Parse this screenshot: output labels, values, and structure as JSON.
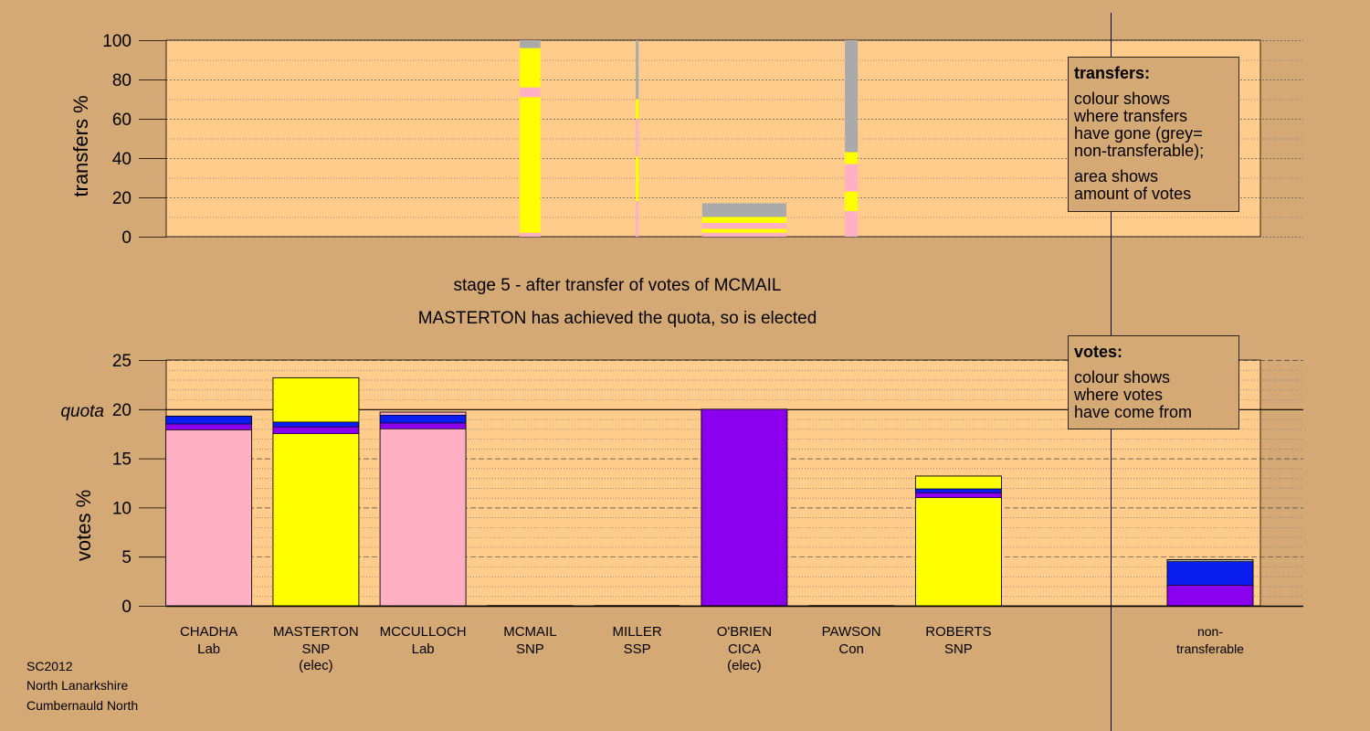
{
  "colors": {
    "background": "#D4A976",
    "plot": "#FFCC8C",
    "Lab": "#FFB0C3",
    "SNP": "#FFFF00",
    "CICA": "#8C00F0",
    "other": "#0A1EF0",
    "non_transferable": "#AAAAAA"
  },
  "stage_title": "stage 5 - after transfer of votes of MCMAIL",
  "stage_subtitle": "MASTERTON has achieved the quota, so is elected",
  "footer": {
    "line1": "SC2012",
    "line2": "North Lanarkshire",
    "line3": "Cumbernauld North"
  },
  "transfers_legend": {
    "title": "transfers:",
    "line1": "colour shows",
    "line2": "where transfers",
    "line3": "have gone (grey=",
    "line4": "non-transferable);",
    "line5": "area shows",
    "line6": "amount of votes"
  },
  "votes_legend": {
    "title": "votes:",
    "line1": "colour shows",
    "line2": "where votes",
    "line3": "have come from"
  },
  "chart_data": [
    {
      "type": "bar",
      "ylabel": "transfers %",
      "ylim": [
        0,
        100
      ],
      "yticks": [
        "0",
        "20",
        "40",
        "60",
        "80",
        "100"
      ],
      "transfer_columns": [
        {
          "slot": 3.5,
          "width": 0.24,
          "segments": [
            {
              "color": "Lab",
              "from": 0,
              "to": 2
            },
            {
              "color": "SNP",
              "from": 2,
              "to": 71
            },
            {
              "color": "Lab",
              "from": 71,
              "to": 76
            },
            {
              "color": "SNP",
              "from": 76,
              "to": 96
            },
            {
              "color": "non_transferable",
              "from": 96,
              "to": 100
            }
          ]
        },
        {
          "slot": 4.5,
          "width": 0.03,
          "segments": [
            {
              "color": "Lab",
              "from": 0,
              "to": 18
            },
            {
              "color": "SNP",
              "from": 18,
              "to": 41
            },
            {
              "color": "Lab",
              "from": 41,
              "to": 60
            },
            {
              "color": "SNP",
              "from": 60,
              "to": 70
            },
            {
              "color": "non_transferable",
              "from": 70,
              "to": 100
            }
          ]
        },
        {
          "slot": 5.5,
          "width": 0.98,
          "segments": [
            {
              "color": "Lab",
              "from": 0,
              "to": 2
            },
            {
              "color": "SNP",
              "from": 2,
              "to": 4
            },
            {
              "color": "Lab",
              "from": 4,
              "to": 7
            },
            {
              "color": "SNP",
              "from": 7,
              "to": 10
            },
            {
              "color": "non_transferable",
              "from": 10,
              "to": 17
            }
          ]
        },
        {
          "slot": 6.5,
          "width": 0.15,
          "segments": [
            {
              "color": "Lab",
              "from": 0,
              "to": 13
            },
            {
              "color": "SNP",
              "from": 13,
              "to": 23
            },
            {
              "color": "Lab",
              "from": 23,
              "to": 37
            },
            {
              "color": "SNP",
              "from": 37,
              "to": 43
            },
            {
              "color": "non_transferable",
              "from": 43,
              "to": 100
            }
          ]
        }
      ]
    },
    {
      "type": "bar",
      "ylabel": "votes %",
      "ylim": [
        0,
        25
      ],
      "yticks": [
        "0",
        "5",
        "10",
        "15",
        "20",
        "25"
      ],
      "quota": 20,
      "quota_label": "quota",
      "categories": [
        {
          "name": "CHADHA",
          "party": "Lab",
          "note": ""
        },
        {
          "name": "MASTERTON",
          "party": "SNP",
          "note": "(elec)"
        },
        {
          "name": "MCCULLOCH",
          "party": "Lab",
          "note": ""
        },
        {
          "name": "MCMAIL",
          "party": "SNP",
          "note": ""
        },
        {
          "name": "MILLER",
          "party": "SSP",
          "note": ""
        },
        {
          "name": "O'BRIEN",
          "party": "CICA",
          "note": "(elec)"
        },
        {
          "name": "PAWSON",
          "party": "Con",
          "note": ""
        },
        {
          "name": "ROBERTS",
          "party": "SNP",
          "note": ""
        }
      ],
      "nontransferable_label_1": "non-",
      "nontransferable_label_2": "transferable",
      "stacks": [
        [
          {
            "color": "Lab",
            "value": 17.9
          },
          {
            "color": "CICA",
            "value": 0.6
          },
          {
            "color": "other",
            "value": 0.8
          }
        ],
        [
          {
            "color": "SNP",
            "value": 17.5
          },
          {
            "color": "CICA",
            "value": 0.7
          },
          {
            "color": "other",
            "value": 0.5
          },
          {
            "color": "SNP",
            "value": 4.5
          }
        ],
        [
          {
            "color": "Lab",
            "value": 18.0
          },
          {
            "color": "CICA",
            "value": 0.6
          },
          {
            "color": "other",
            "value": 0.8
          },
          {
            "color": "Lab",
            "value": 0.3
          }
        ],
        [],
        [],
        [
          {
            "color": "CICA",
            "value": 20.0
          }
        ],
        [],
        [
          {
            "color": "SNP",
            "value": 11.0
          },
          {
            "color": "CICA",
            "value": 0.5
          },
          {
            "color": "other",
            "value": 0.4
          },
          {
            "color": "SNP",
            "value": 1.3
          }
        ]
      ],
      "nontransferable_stack": [
        {
          "color": "CICA",
          "value": 2.1
        },
        {
          "color": "other",
          "value": 2.4
        },
        {
          "color": "non_transferable",
          "value": 0.2
        }
      ]
    }
  ]
}
